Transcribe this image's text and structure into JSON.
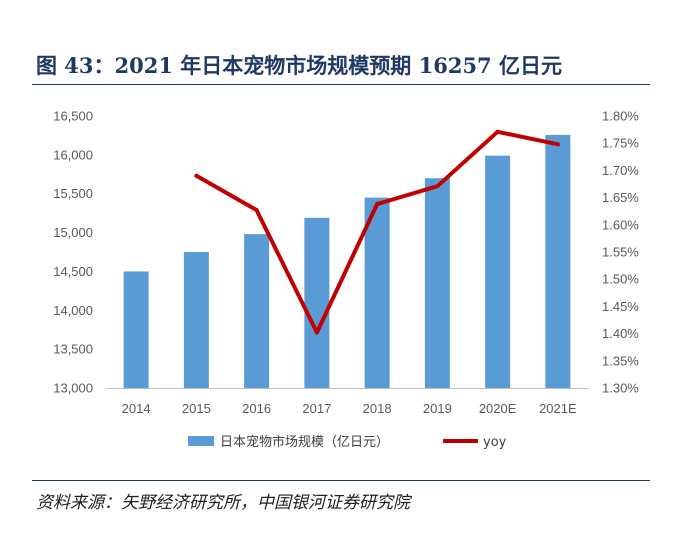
{
  "title": "图 43：2021 年日本宠物市场规模预期 16257 亿日元",
  "source": "资料来源：矢野经济研究所，中国银河证券研究院",
  "colors": {
    "bar": "#5b9bd5",
    "line": "#c00000",
    "title": "#1f3864"
  },
  "chart_data": {
    "type": "bar",
    "categories": [
      "2014",
      "2015",
      "2016",
      "2017",
      "2018",
      "2019",
      "2020E",
      "2021E"
    ],
    "series": [
      {
        "name": "日本宠物市场规模（亿日元）",
        "type": "bar",
        "axis": "left",
        "values": [
          14500,
          14750,
          14980,
          15190,
          15450,
          15700,
          15990,
          16257
        ]
      },
      {
        "name": "yoy",
        "type": "line",
        "axis": "right",
        "values": [
          null,
          1.69,
          1.627,
          1.402,
          1.638,
          1.671,
          1.771,
          1.748
        ]
      }
    ],
    "y_left": {
      "min": 13000,
      "max": 16500,
      "ticks": [
        "13,000",
        "13,500",
        "14,000",
        "14,500",
        "15,000",
        "15,500",
        "16,000",
        "16,500"
      ]
    },
    "y_right": {
      "min": 1.3,
      "max": 1.8,
      "ticks": [
        "1.30%",
        "1.35%",
        "1.40%",
        "1.45%",
        "1.50%",
        "1.55%",
        "1.60%",
        "1.65%",
        "1.70%",
        "1.75%",
        "1.80%"
      ]
    },
    "legend": {
      "position": "bottom",
      "items": [
        "日本宠物市场规模（亿日元）",
        "yoy"
      ]
    },
    "grid": false
  }
}
